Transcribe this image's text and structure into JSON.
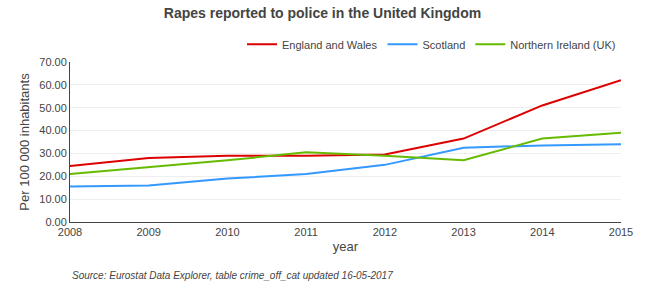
{
  "chart_data": {
    "type": "line",
    "title": "Rapes reported to police in the United Kingdom",
    "xlabel": "year",
    "ylabel": "Per 100 000 inhabitants",
    "annotations": [
      "Source: Eurostat Data Explorer, table crime_off_cat updated 16-05-2017"
    ],
    "x": [
      2008,
      2009,
      2010,
      2011,
      2012,
      2013,
      2014,
      2015
    ],
    "series": [
      {
        "name": "England and Wales",
        "color": "#dd0000",
        "values": [
          24.5,
          28.0,
          29.0,
          29.0,
          29.5,
          36.5,
          51.0,
          62.0
        ]
      },
      {
        "name": "Scotland",
        "color": "#3399ff",
        "values": [
          15.5,
          16.0,
          19.0,
          21.0,
          25.0,
          32.5,
          33.5,
          34.0
        ]
      },
      {
        "name": "Northern Ireland (UK)",
        "color": "#66bb00",
        "values": [
          21.0,
          24.0,
          27.0,
          30.5,
          29.0,
          27.0,
          36.5,
          39.0
        ]
      }
    ],
    "xlim": [
      2008,
      2015
    ],
    "xticks": [
      2008,
      2009,
      2010,
      2011,
      2012,
      2013,
      2014,
      2015
    ],
    "ylim": [
      0,
      70
    ],
    "yticks": [
      {
        "value": 0,
        "label": "0.00"
      },
      {
        "value": 10,
        "label": "10.00"
      },
      {
        "value": 20,
        "label": "20.00"
      },
      {
        "value": 30,
        "label": "30.00"
      },
      {
        "value": 40,
        "label": "40.00"
      },
      {
        "value": 50,
        "label": "50.00"
      },
      {
        "value": 60,
        "label": "60.00"
      },
      {
        "value": 70,
        "label": "70.00"
      }
    ],
    "grid": true,
    "legend": "top"
  }
}
